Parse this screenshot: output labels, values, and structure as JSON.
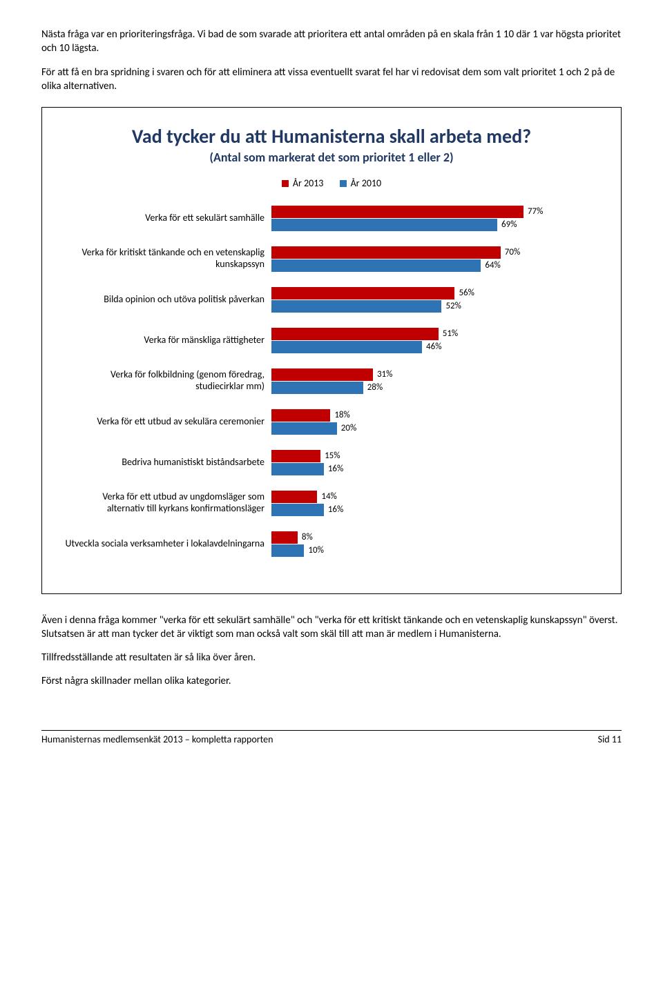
{
  "intro": {
    "p1": "Nästa fråga var en prioriteringsfråga. Vi bad de som svarade att prioritera ett antal områden på en skala från 1 10 där 1 var högsta prioritet och 10 lägsta.",
    "p2": "För att få en bra spridning i svaren och för att eliminera att vissa eventuellt svarat fel har vi redovisat dem som valt prioritet 1 och 2 på de olika alternativen."
  },
  "chart": {
    "title": "Vad tycker du att Humanisterna skall arbeta med?",
    "subtitle": "(Antal som markerat det som prioritet 1 eller 2)",
    "legend": [
      {
        "label": "År 2013",
        "color": "#c00000"
      },
      {
        "label": "År 2010",
        "color": "#2e74b5"
      }
    ],
    "max_pct": 100,
    "rows": [
      {
        "label": "Verka för ett sekulärt samhälle",
        "v2013": 77,
        "v2010": 69
      },
      {
        "label": "Verka för kritiskt tänkande och en vetenskaplig kunskapssyn",
        "v2013": 70,
        "v2010": 64
      },
      {
        "label": "Bilda opinion och utöva politisk påverkan",
        "v2013": 56,
        "v2010": 52
      },
      {
        "label": "Verka för mänskliga rättigheter",
        "v2013": 51,
        "v2010": 46
      },
      {
        "label": "Verka för folkbildning (genom föredrag, studiecirklar mm)",
        "v2013": 31,
        "v2010": 28
      },
      {
        "label": "Verka för ett utbud av sekulära ceremonier",
        "v2013": 18,
        "v2010": 20
      },
      {
        "label": "Bedriva humanistiskt biståndsarbete",
        "v2013": 15,
        "v2010": 16
      },
      {
        "label": "Verka för ett utbud av ungdomsläger som alternativ till kyrkans konfirmationsläger",
        "v2013": 14,
        "v2010": 16
      },
      {
        "label": "Utveckla sociala verksamheter i lokalavdelningarna",
        "v2013": 8,
        "v2010": 10
      }
    ]
  },
  "outro": {
    "p1": "Även i denna fråga kommer \"verka för ett sekulärt samhälle\" och \"verka för ett kritiskt tänkande och en vetenskaplig kunskapssyn\" överst. Slutsatsen är att man tycker det är viktigt som man också valt som skäl till att man är medlem i Humanisterna.",
    "p2": "Tillfredsställande att resultaten är så lika över åren.",
    "p3": "Först några skillnader mellan olika kategorier."
  },
  "footer": {
    "left": "Humanisternas medlemsenkät 2013 – kompletta rapporten",
    "right": "Sid 11"
  }
}
